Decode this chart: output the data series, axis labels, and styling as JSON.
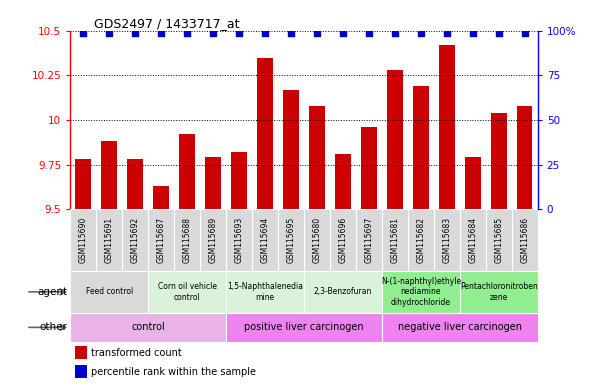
{
  "title": "GDS2497 / 1433717_at",
  "samples": [
    "GSM115690",
    "GSM115691",
    "GSM115692",
    "GSM115687",
    "GSM115688",
    "GSM115689",
    "GSM115693",
    "GSM115694",
    "GSM115695",
    "GSM115680",
    "GSM115696",
    "GSM115697",
    "GSM115681",
    "GSM115682",
    "GSM115683",
    "GSM115684",
    "GSM115685",
    "GSM115686"
  ],
  "bar_values": [
    9.78,
    9.88,
    9.78,
    9.63,
    9.92,
    9.79,
    9.82,
    10.35,
    10.17,
    10.08,
    9.81,
    9.96,
    10.28,
    10.19,
    10.42,
    9.79,
    10.04,
    10.08
  ],
  "ymin": 9.5,
  "ymax": 10.5,
  "yticks": [
    9.5,
    9.75,
    10.0,
    10.25,
    10.5
  ],
  "ytick_labels": [
    "9.5",
    "9.75",
    "10",
    "10.25",
    "10.5"
  ],
  "right_ytick_pcts": [
    0,
    25,
    50,
    75,
    100
  ],
  "right_ytick_labels": [
    "0",
    "25",
    "50",
    "75",
    "100%"
  ],
  "bar_color": "#cc0000",
  "dot_color": "#0000cc",
  "agent_groups": [
    {
      "label": "Feed control",
      "start": 0,
      "end": 3,
      "color": "#d9d9d9"
    },
    {
      "label": "Corn oil vehicle\ncontrol",
      "start": 3,
      "end": 6,
      "color": "#d9f2d9"
    },
    {
      "label": "1,5-Naphthalenedia\nmine",
      "start": 6,
      "end": 9,
      "color": "#d9f2d9"
    },
    {
      "label": "2,3-Benzofuran",
      "start": 9,
      "end": 12,
      "color": "#d9f2d9"
    },
    {
      "label": "N-(1-naphthyl)ethyle\nnediamine\ndihydrochloride",
      "start": 12,
      "end": 15,
      "color": "#90ee90"
    },
    {
      "label": "Pentachloronitroben\nzene",
      "start": 15,
      "end": 18,
      "color": "#90ee90"
    }
  ],
  "other_groups": [
    {
      "label": "control",
      "start": 0,
      "end": 6,
      "color": "#e8b4e8"
    },
    {
      "label": "positive liver carcinogen",
      "start": 6,
      "end": 12,
      "color": "#ee82ee"
    },
    {
      "label": "negative liver carcinogen",
      "start": 12,
      "end": 18,
      "color": "#ee82ee"
    }
  ],
  "sample_cell_color": "#d9d9d9",
  "legend_items": [
    {
      "color": "#cc0000",
      "label": "transformed count"
    },
    {
      "color": "#0000cc",
      "label": "percentile rank within the sample"
    }
  ]
}
